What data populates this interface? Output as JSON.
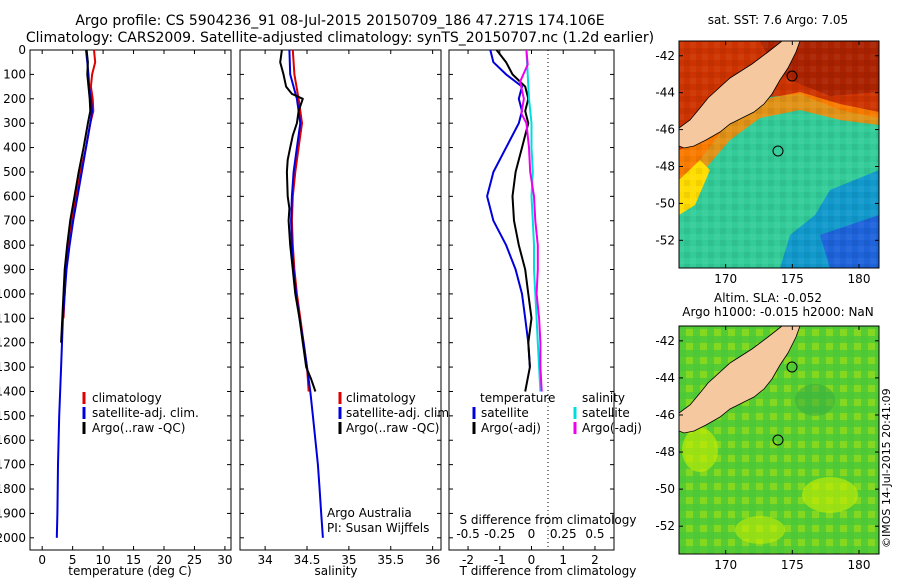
{
  "header": {
    "line1": "Argo profile: CS 5904236_91 08-Jul-2015 20150709_186 47.271S 174.106E",
    "line2": "Climatology: CARS2009. Satellite-adjusted climatology: synTS_20150707.nc (1.2d earlier)"
  },
  "colors": {
    "climatology": "#dd0000",
    "satellite": "#0000dd",
    "argo": "#000000",
    "salinity_satellite": "#00dddd",
    "salinity_argo": "#ee00ee"
  },
  "chart_data": [
    {
      "type": "line",
      "name": "temperature-panel",
      "xlabel": "temperature (deg C)",
      "xlim": [
        -2,
        31
      ],
      "ylim": [
        2050,
        0
      ],
      "x_ticks": [
        "0",
        "5",
        "10",
        "15",
        "20",
        "25",
        "30"
      ],
      "y_ticks": [
        "0",
        "100",
        "200",
        "300",
        "400",
        "500",
        "600",
        "700",
        "800",
        "900",
        "1000",
        "1100",
        "1200",
        "1300",
        "1400",
        "1500",
        "1600",
        "1700",
        "1800",
        "1900",
        "2000"
      ],
      "legend": [
        "climatology",
        "satellite-adj. clim.",
        "Argo(..raw -QC)"
      ],
      "series": [
        {
          "name": "climatology",
          "color_key": "climatology",
          "points": [
            [
              8.5,
              0
            ],
            [
              8.7,
              50
            ],
            [
              8.2,
              100
            ],
            [
              8.0,
              150
            ],
            [
              8.3,
              200
            ],
            [
              8.4,
              250
            ],
            [
              7.9,
              300
            ],
            [
              7.2,
              400
            ],
            [
              6.3,
              500
            ],
            [
              5.6,
              600
            ],
            [
              4.9,
              700
            ],
            [
              4.3,
              800
            ],
            [
              3.9,
              900
            ],
            [
              3.7,
              1000
            ],
            [
              3.5,
              1100
            ]
          ]
        },
        {
          "name": "satellite-adj. clim.",
          "color_key": "satellite",
          "points": [
            [
              7.2,
              0
            ],
            [
              7.4,
              50
            ],
            [
              7.6,
              100
            ],
            [
              7.7,
              150
            ],
            [
              8.0,
              200
            ],
            [
              8.2,
              250
            ],
            [
              7.9,
              300
            ],
            [
              7.2,
              400
            ],
            [
              6.5,
              500
            ],
            [
              5.8,
              600
            ],
            [
              5.1,
              700
            ],
            [
              4.5,
              800
            ],
            [
              4.0,
              900
            ],
            [
              3.7,
              1000
            ],
            [
              3.4,
              1100
            ],
            [
              3.1,
              1300
            ],
            [
              2.8,
              1500
            ],
            [
              2.6,
              1700
            ],
            [
              2.5,
              1900
            ],
            [
              2.4,
              2000
            ]
          ]
        },
        {
          "name": "Argo(..raw -QC)",
          "color_key": "argo",
          "points": [
            [
              7.3,
              0
            ],
            [
              7.5,
              50
            ],
            [
              7.4,
              100
            ],
            [
              7.6,
              150
            ],
            [
              7.8,
              200
            ],
            [
              7.9,
              250
            ],
            [
              7.5,
              300
            ],
            [
              6.8,
              400
            ],
            [
              6.0,
              500
            ],
            [
              5.3,
              600
            ],
            [
              4.6,
              700
            ],
            [
              4.1,
              800
            ],
            [
              3.7,
              900
            ],
            [
              3.5,
              1000
            ],
            [
              3.3,
              1100
            ],
            [
              3.1,
              1200
            ]
          ]
        }
      ]
    },
    {
      "type": "line",
      "name": "salinity-panel",
      "xlabel": "salinity",
      "xlim": [
        33.7,
        36.1
      ],
      "ylim": [
        2050,
        0
      ],
      "x_ticks": [
        "34",
        "34.5",
        "35",
        "35.5",
        "36"
      ],
      "legend": [
        "climatology",
        "satellite-adj. clim.",
        "Argo(..raw -QC)"
      ],
      "annotation": [
        "Argo Australia",
        "PI: Susan Wijffels"
      ],
      "series": [
        {
          "name": "climatology",
          "color_key": "climatology",
          "points": [
            [
              34.33,
              0
            ],
            [
              34.35,
              100
            ],
            [
              34.4,
              200
            ],
            [
              34.44,
              300
            ],
            [
              34.4,
              400
            ],
            [
              34.36,
              500
            ],
            [
              34.33,
              600
            ],
            [
              34.32,
              700
            ],
            [
              34.33,
              800
            ],
            [
              34.35,
              900
            ],
            [
              34.38,
              1000
            ],
            [
              34.42,
              1100
            ],
            [
              34.46,
              1200
            ],
            [
              34.5,
              1300
            ],
            [
              34.52,
              1400
            ]
          ]
        },
        {
          "name": "satellite-adj. clim.",
          "color_key": "satellite",
          "points": [
            [
              34.29,
              0
            ],
            [
              34.3,
              100
            ],
            [
              34.38,
              200
            ],
            [
              34.42,
              300
            ],
            [
              34.38,
              400
            ],
            [
              34.34,
              500
            ],
            [
              34.32,
              600
            ],
            [
              34.31,
              700
            ],
            [
              34.32,
              800
            ],
            [
              34.34,
              900
            ],
            [
              34.37,
              1000
            ],
            [
              34.41,
              1100
            ],
            [
              34.46,
              1200
            ],
            [
              34.5,
              1300
            ],
            [
              34.54,
              1400
            ],
            [
              34.57,
              1500
            ],
            [
              34.6,
              1600
            ],
            [
              34.63,
              1700
            ],
            [
              34.65,
              1800
            ],
            [
              34.67,
              1900
            ],
            [
              34.69,
              2000
            ]
          ]
        },
        {
          "name": "Argo(..raw -QC)",
          "color_key": "argo",
          "points": [
            [
              34.2,
              0
            ],
            [
              34.18,
              50
            ],
            [
              34.22,
              100
            ],
            [
              34.25,
              150
            ],
            [
              34.32,
              180
            ],
            [
              34.45,
              200
            ],
            [
              34.4,
              250
            ],
            [
              34.38,
              300
            ],
            [
              34.33,
              350
            ],
            [
              34.3,
              400
            ],
            [
              34.27,
              450
            ],
            [
              34.26,
              500
            ],
            [
              34.27,
              600
            ],
            [
              34.29,
              650
            ],
            [
              34.28,
              700
            ],
            [
              34.3,
              800
            ],
            [
              34.33,
              900
            ],
            [
              34.36,
              1000
            ],
            [
              34.41,
              1100
            ],
            [
              34.45,
              1200
            ],
            [
              34.49,
              1300
            ],
            [
              34.55,
              1350
            ],
            [
              34.6,
              1400
            ]
          ]
        }
      ]
    },
    {
      "type": "line",
      "name": "difference-panel",
      "xlabel": "T difference from climatology",
      "xlabel_top": "S difference from climatology",
      "xlim": [
        -2.6,
        2.6
      ],
      "ylim": [
        2050,
        0
      ],
      "x_ticks": [
        "-2",
        "-1",
        "0",
        "1",
        "2"
      ],
      "x_ticks_top": [
        "-0.5",
        "-0.25",
        "0",
        "0.25",
        "0.5"
      ],
      "legend_title_left": "temperature",
      "legend_title_right": "salinity",
      "legend_left": [
        "satellite",
        "Argo(-adj)"
      ],
      "legend_right": [
        "satellite",
        "Argo(-adj)"
      ],
      "series": [
        {
          "name": "temperature satellite",
          "color_key": "satellite",
          "points": [
            [
              -1.3,
              0
            ],
            [
              -1.2,
              50
            ],
            [
              -0.8,
              100
            ],
            [
              -0.3,
              150
            ],
            [
              -0.4,
              200
            ],
            [
              -0.3,
              250
            ],
            [
              -0.4,
              300
            ],
            [
              -0.8,
              400
            ],
            [
              -1.2,
              500
            ],
            [
              -1.4,
              600
            ],
            [
              -1.2,
              700
            ],
            [
              -0.8,
              800
            ],
            [
              -0.5,
              900
            ],
            [
              -0.3,
              1000
            ],
            [
              -0.2,
              1100
            ],
            [
              -0.1,
              1200
            ],
            [
              -0.05,
              1300
            ]
          ]
        },
        {
          "name": "temperature Argo(-adj)",
          "color_key": "argo",
          "points": [
            [
              -1.1,
              0
            ],
            [
              -0.8,
              50
            ],
            [
              -0.6,
              100
            ],
            [
              -0.2,
              150
            ],
            [
              -0.1,
              200
            ],
            [
              -0.2,
              250
            ],
            [
              -0.1,
              300
            ],
            [
              -0.3,
              400
            ],
            [
              -0.5,
              500
            ],
            [
              -0.6,
              600
            ],
            [
              -0.55,
              700
            ],
            [
              -0.4,
              800
            ],
            [
              -0.2,
              900
            ],
            [
              -0.1,
              1000
            ],
            [
              0.0,
              1100
            ],
            [
              -0.1,
              1200
            ],
            [
              -0.05,
              1300
            ],
            [
              -0.2,
              1400
            ]
          ]
        },
        {
          "name": "salinity satellite",
          "color_key": "salinity_satellite",
          "points": [
            [
              -0.04,
              0
            ],
            [
              -0.03,
              100
            ],
            [
              -0.02,
              200
            ],
            [
              0.0,
              300
            ],
            [
              0.0,
              400
            ],
            [
              0.01,
              500
            ],
            [
              0.0,
              600
            ],
            [
              0.01,
              700
            ],
            [
              0.02,
              800
            ],
            [
              0.02,
              900
            ],
            [
              0.03,
              1000
            ],
            [
              0.04,
              1100
            ],
            [
              0.05,
              1200
            ],
            [
              0.06,
              1300
            ],
            [
              0.07,
              1400
            ]
          ]
        },
        {
          "name": "salinity Argo(-adj)",
          "color_key": "salinity_argo",
          "points": [
            [
              -0.04,
              0
            ],
            [
              -0.03,
              60
            ],
            [
              -0.09,
              130
            ],
            [
              -0.06,
              200
            ],
            [
              -0.08,
              260
            ],
            [
              -0.04,
              300
            ],
            [
              -0.02,
              400
            ],
            [
              -0.01,
              500
            ],
            [
              0.02,
              600
            ],
            [
              0.03,
              700
            ],
            [
              0.05,
              800
            ],
            [
              0.05,
              900
            ],
            [
              0.04,
              1000
            ],
            [
              0.06,
              1100
            ],
            [
              0.07,
              1200
            ],
            [
              0.07,
              1300
            ],
            [
              0.08,
              1400
            ]
          ]
        }
      ]
    },
    {
      "type": "heatmap",
      "name": "sst-map",
      "title": "sat. SST: 7.6 Argo: 7.05",
      "x_ticks": [
        "170",
        "175",
        "180"
      ],
      "y_ticks": [
        "-42",
        "-44",
        "-46",
        "-48",
        "-50",
        "-52"
      ],
      "xlim": [
        166.5,
        181.5
      ],
      "ylim": [
        -53.5,
        -41.2
      ],
      "float_position": [
        174.1,
        -47.27
      ]
    },
    {
      "type": "heatmap",
      "name": "sla-map",
      "title_line1": "Altim. SLA: -0.052",
      "title_line2": "Argo h1000: -0.015 h2000: NaN",
      "x_ticks": [
        "170",
        "175",
        "180"
      ],
      "y_ticks": [
        "-42",
        "-44",
        "-46",
        "-48",
        "-50",
        "-52"
      ],
      "xlim": [
        166.5,
        181.5
      ],
      "ylim": [
        -53.5,
        -41.2
      ],
      "float_position": [
        174.1,
        -47.27
      ],
      "side_label": "©IMOS 14-Jul-2015 20:41:09"
    }
  ]
}
